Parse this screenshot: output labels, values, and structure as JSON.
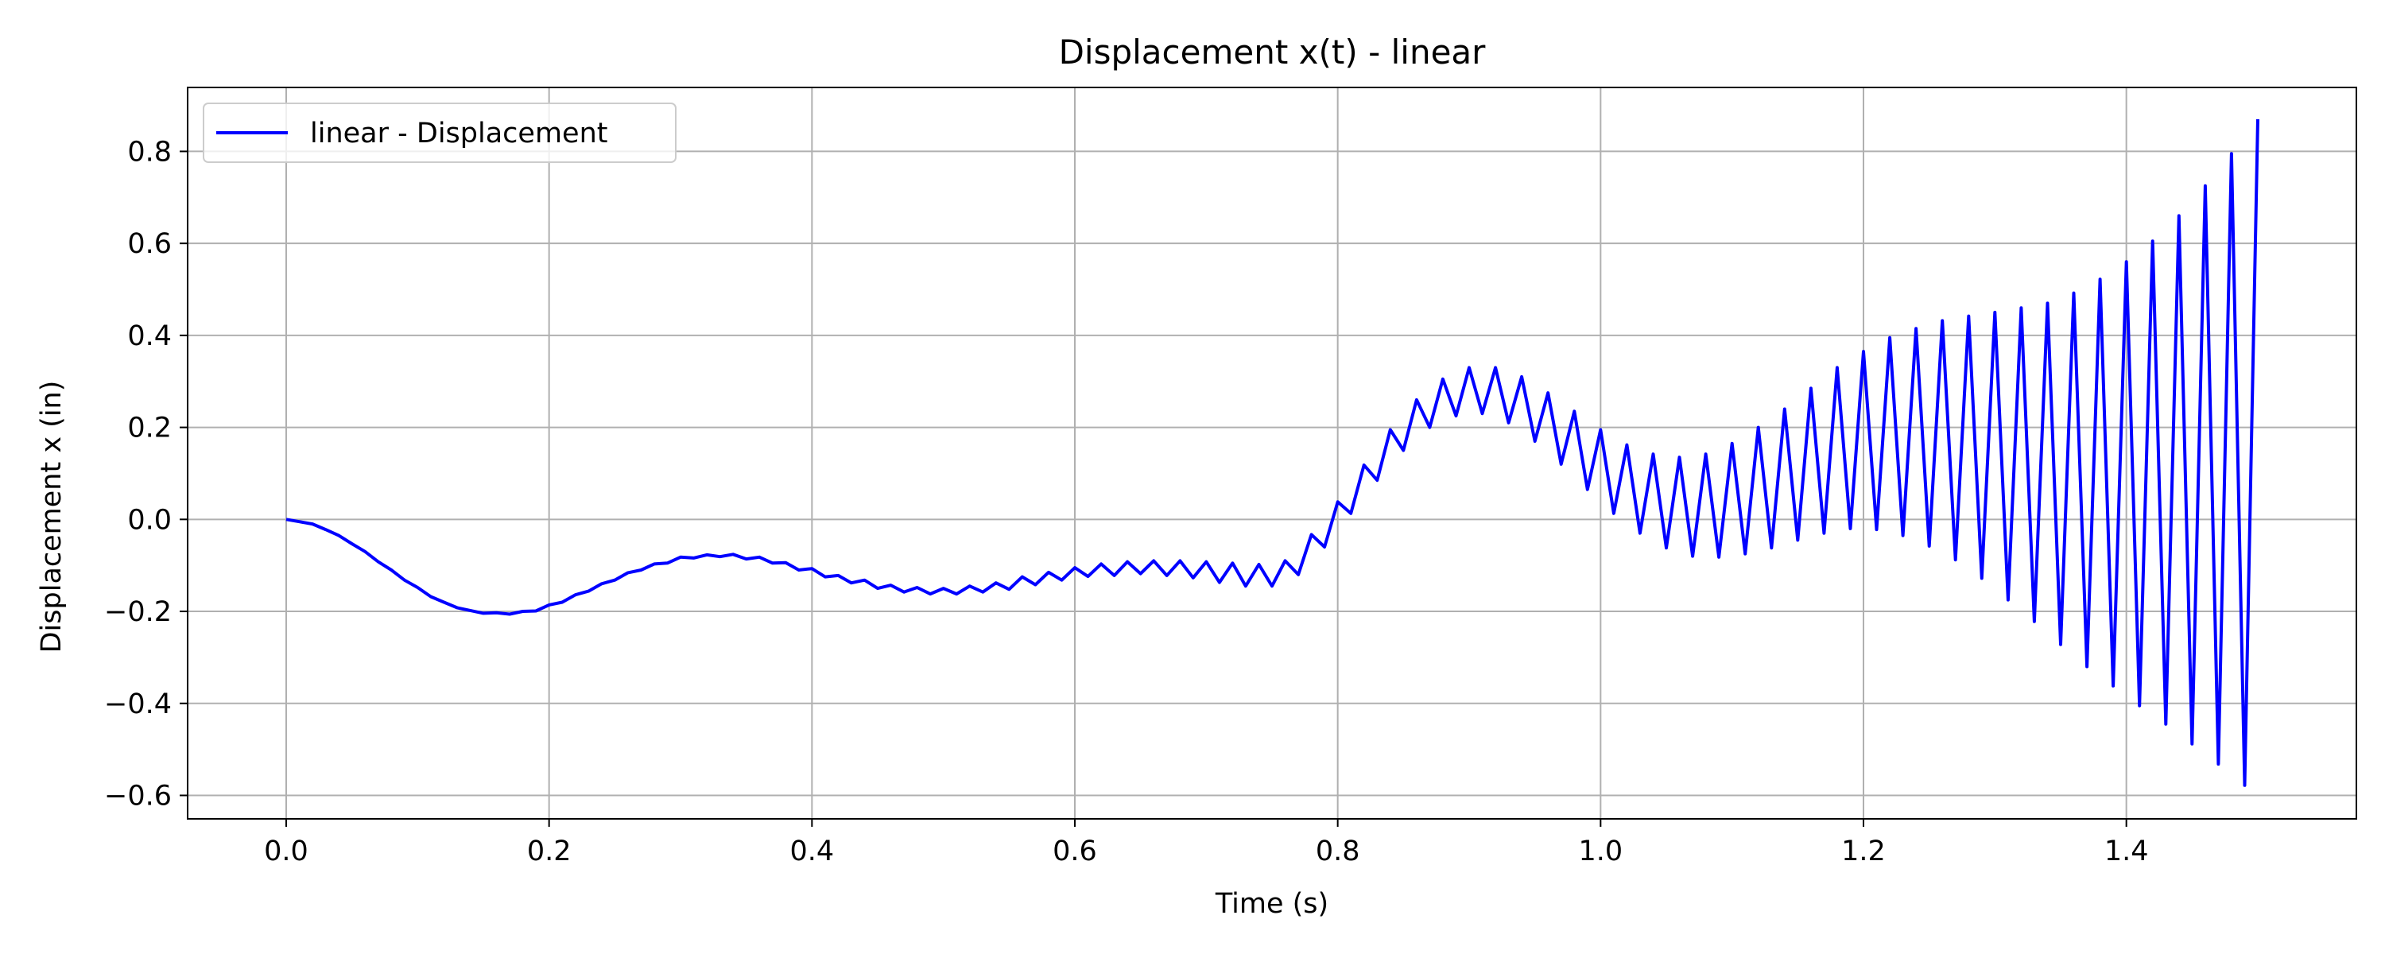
{
  "chart_data": {
    "type": "line",
    "title": "Displacement x(t) - linear",
    "xlabel": "Time (s)",
    "ylabel": "Displacement x (in)",
    "xlim": [
      -0.075,
      1.575
    ],
    "ylim": [
      -0.651,
      0.939
    ],
    "xticks": [
      0.0,
      0.2,
      0.4,
      0.6,
      0.8,
      1.0,
      1.2,
      1.4
    ],
    "xtick_labels": [
      "0.0",
      "0.2",
      "0.4",
      "0.6",
      "0.8",
      "1.0",
      "1.2",
      "1.4"
    ],
    "yticks": [
      -0.6,
      -0.4,
      -0.2,
      0.0,
      0.2,
      0.4,
      0.6,
      0.8
    ],
    "ytick_labels": [
      "−0.6",
      "−0.4",
      "−0.2",
      "0.0",
      "0.2",
      "0.4",
      "0.6",
      "0.8"
    ],
    "grid": true,
    "legend": {
      "position": "upper-left"
    },
    "series": [
      {
        "name": "linear - Displacement",
        "color": "#0000ff",
        "x": [
          0.0,
          0.01,
          0.02,
          0.03,
          0.04,
          0.05,
          0.06,
          0.07,
          0.08,
          0.09,
          0.1,
          0.11,
          0.12,
          0.13,
          0.14,
          0.15,
          0.16,
          0.17,
          0.18,
          0.19,
          0.2,
          0.21,
          0.22,
          0.23,
          0.24,
          0.25,
          0.26,
          0.27,
          0.28,
          0.29,
          0.3,
          0.31,
          0.32,
          0.33,
          0.34,
          0.35,
          0.36,
          0.37,
          0.38,
          0.39,
          0.4,
          0.41,
          0.42,
          0.43,
          0.44,
          0.45,
          0.46,
          0.47,
          0.48,
          0.49,
          0.5,
          0.51,
          0.52,
          0.53,
          0.54,
          0.55,
          0.56,
          0.57,
          0.58,
          0.59,
          0.6,
          0.61,
          0.62,
          0.63,
          0.64,
          0.65,
          0.66,
          0.67,
          0.68,
          0.69,
          0.7,
          0.71,
          0.72,
          0.73,
          0.74,
          0.75,
          0.76,
          0.77,
          0.78,
          0.79,
          0.8,
          0.81,
          0.82,
          0.83,
          0.84,
          0.85,
          0.86,
          0.87,
          0.88,
          0.89,
          0.9,
          0.91,
          0.92,
          0.93,
          0.94,
          0.95,
          0.96,
          0.97,
          0.98,
          0.99,
          1.0,
          1.01,
          1.02,
          1.03,
          1.04,
          1.05,
          1.06,
          1.07,
          1.08,
          1.09,
          1.1,
          1.11,
          1.12,
          1.13,
          1.14,
          1.15,
          1.16,
          1.17,
          1.18,
          1.19,
          1.2,
          1.21,
          1.22,
          1.23,
          1.24,
          1.25,
          1.26,
          1.27,
          1.28,
          1.29,
          1.3,
          1.31,
          1.32,
          1.33,
          1.34,
          1.35,
          1.36,
          1.37,
          1.38,
          1.39,
          1.4,
          1.41,
          1.42,
          1.43,
          1.44,
          1.45,
          1.46,
          1.47,
          1.48,
          1.49,
          1.5
        ],
        "y": [
          0.0,
          -0.005,
          -0.01,
          -0.022,
          -0.035,
          -0.053,
          -0.07,
          -0.092,
          -0.11,
          -0.132,
          -0.148,
          -0.168,
          -0.18,
          -0.192,
          -0.198,
          -0.204,
          -0.203,
          -0.206,
          -0.2,
          -0.199,
          -0.186,
          -0.18,
          -0.164,
          -0.156,
          -0.14,
          -0.132,
          -0.116,
          -0.11,
          -0.097,
          -0.095,
          -0.082,
          -0.084,
          -0.077,
          -0.081,
          -0.076,
          -0.086,
          -0.082,
          -0.095,
          -0.094,
          -0.11,
          -0.107,
          -0.125,
          -0.122,
          -0.138,
          -0.132,
          -0.15,
          -0.143,
          -0.158,
          -0.148,
          -0.162,
          -0.15,
          -0.162,
          -0.145,
          -0.158,
          -0.138,
          -0.152,
          -0.125,
          -0.142,
          -0.115,
          -0.132,
          -0.105,
          -0.124,
          -0.097,
          -0.122,
          -0.092,
          -0.118,
          -0.09,
          -0.122,
          -0.09,
          -0.127,
          -0.092,
          -0.137,
          -0.095,
          -0.145,
          -0.098,
          -0.145,
          -0.09,
          -0.12,
          -0.033,
          -0.06,
          0.038,
          0.013,
          0.118,
          0.085,
          0.195,
          0.15,
          0.26,
          0.2,
          0.305,
          0.225,
          0.33,
          0.23,
          0.33,
          0.21,
          0.31,
          0.17,
          0.275,
          0.12,
          0.235,
          0.065,
          0.195,
          0.013,
          0.162,
          -0.03,
          0.142,
          -0.062,
          0.135,
          -0.08,
          0.142,
          -0.082,
          0.165,
          -0.075,
          0.2,
          -0.062,
          0.24,
          -0.045,
          0.285,
          -0.03,
          0.33,
          -0.02,
          0.365,
          -0.022,
          0.395,
          -0.035,
          0.415,
          -0.058,
          0.432,
          -0.088,
          0.442,
          -0.128,
          0.45,
          -0.175,
          0.46,
          -0.222,
          0.47,
          -0.272,
          0.492,
          -0.32,
          0.522,
          -0.362,
          0.56,
          -0.405,
          0.605,
          -0.445,
          0.66,
          -0.488,
          0.725,
          -0.532,
          0.795,
          -0.578,
          0.87
        ]
      }
    ]
  }
}
